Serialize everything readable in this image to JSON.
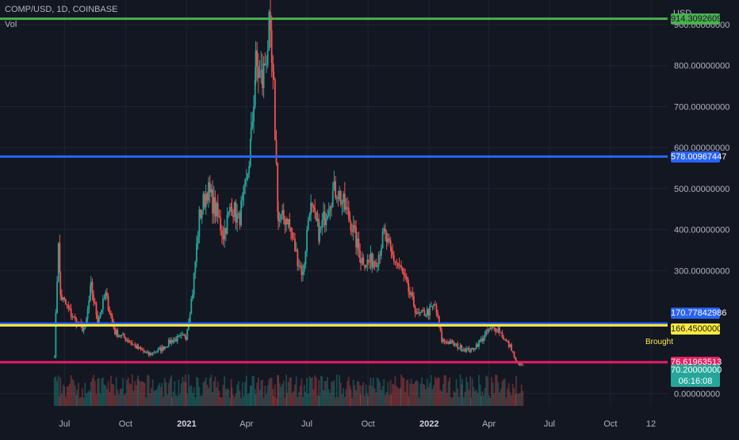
{
  "header": {
    "title": "COMP/USD, 1D, COINBASE",
    "indicator": "Vol"
  },
  "axis_unit": "USD",
  "colors": {
    "background": "#131722",
    "grid": "#1f2430",
    "up": "#26a69a",
    "down": "#ef5350",
    "axis_text": "#b2b5be"
  },
  "horizontal_lines": [
    {
      "price": 914.30926098,
      "label": "914.30926098",
      "color": "#4caf50",
      "text_color": "#131722"
    },
    {
      "price": 578.00967447,
      "label": "578.00967447",
      "color": "#2962ff",
      "text_color": "#ffffff"
    },
    {
      "price": 170.77842986,
      "label": "170.77842986",
      "color": "#2962ff",
      "text_color": "#ffffff"
    },
    {
      "price": 166.45,
      "label": "166.45000000",
      "color": "#ffeb3b",
      "text_color": "#131722",
      "tag": "Brought"
    },
    {
      "price": 76.61963513,
      "label": "76.61963513",
      "color": "#e91e63",
      "text_color": "#ffffff"
    }
  ],
  "last_price": {
    "label": "70.20000000",
    "countdown": "06:16:08",
    "color": "#26a69a"
  },
  "chart_data": {
    "type": "candlestick",
    "y_axis": {
      "ticks": [
        0,
        300,
        400,
        500,
        600,
        700,
        800,
        900
      ],
      "tick_labels": [
        "0.00000000",
        "300.00000000",
        "400.00000000",
        "500.00000000",
        "600.00000000",
        "700.00000000",
        "800.00000000",
        "900.00000000"
      ],
      "range": [
        -30,
        960
      ]
    },
    "x_axis": {
      "tick_labels": [
        "Jul",
        "Oct",
        "2021",
        "Apr",
        "Jul",
        "Oct",
        "2022",
        "Apr",
        "Jul",
        "Oct",
        "12"
      ],
      "tick_dates": [
        "2020-07-01",
        "2020-10-01",
        "2021-01-01",
        "2021-04-01",
        "2021-07-01",
        "2021-10-01",
        "2022-01-01",
        "2022-04-01",
        "2022-07-01",
        "2022-10-01",
        "2022-12-01"
      ],
      "bold_labels": [
        "2021",
        "2022"
      ],
      "range": [
        "2020-03-26",
        "2022-12-26"
      ]
    },
    "grid": true,
    "series": [
      {
        "name": "COMP/USD",
        "price_path": [
          [
            "2020-06-16",
            95
          ],
          [
            "2020-06-20",
            280
          ],
          [
            "2020-06-22",
            380
          ],
          [
            "2020-06-25",
            240
          ],
          [
            "2020-07-05",
            210
          ],
          [
            "2020-07-20",
            170
          ],
          [
            "2020-08-01",
            155
          ],
          [
            "2020-08-10",
            260
          ],
          [
            "2020-08-20",
            180
          ],
          [
            "2020-09-01",
            240
          ],
          [
            "2020-09-15",
            150
          ],
          [
            "2020-10-01",
            135
          ],
          [
            "2020-10-20",
            110
          ],
          [
            "2020-11-05",
            95
          ],
          [
            "2020-11-25",
            110
          ],
          [
            "2020-12-10",
            130
          ],
          [
            "2020-12-31",
            140
          ],
          [
            "2021-01-10",
            250
          ],
          [
            "2021-01-20",
            430
          ],
          [
            "2021-02-01",
            500
          ],
          [
            "2021-02-15",
            440
          ],
          [
            "2021-02-25",
            390
          ],
          [
            "2021-03-10",
            460
          ],
          [
            "2021-03-20",
            420
          ],
          [
            "2021-04-01",
            510
          ],
          [
            "2021-04-08",
            620
          ],
          [
            "2021-04-15",
            800
          ],
          [
            "2021-04-25",
            760
          ],
          [
            "2021-05-05",
            880
          ],
          [
            "2021-05-12",
            730
          ],
          [
            "2021-05-19",
            420
          ],
          [
            "2021-06-01",
            430
          ],
          [
            "2021-06-15",
            340
          ],
          [
            "2021-06-25",
            290
          ],
          [
            "2021-07-05",
            460
          ],
          [
            "2021-07-20",
            390
          ],
          [
            "2021-08-05",
            480
          ],
          [
            "2021-08-15",
            500
          ],
          [
            "2021-08-25",
            460
          ],
          [
            "2021-09-05",
            420
          ],
          [
            "2021-09-20",
            330
          ],
          [
            "2021-10-01",
            320
          ],
          [
            "2021-10-15",
            330
          ],
          [
            "2021-10-25",
            390
          ],
          [
            "2021-11-05",
            340
          ],
          [
            "2021-11-20",
            300
          ],
          [
            "2021-12-01",
            250
          ],
          [
            "2021-12-15",
            190
          ],
          [
            "2021-12-31",
            200
          ],
          [
            "2022-01-10",
            215
          ],
          [
            "2022-01-20",
            130
          ],
          [
            "2022-02-01",
            125
          ],
          [
            "2022-02-20",
            110
          ],
          [
            "2022-03-05",
            105
          ],
          [
            "2022-03-20",
            130
          ],
          [
            "2022-04-01",
            155
          ],
          [
            "2022-04-15",
            160
          ],
          [
            "2022-04-25",
            130
          ],
          [
            "2022-05-05",
            110
          ],
          [
            "2022-05-12",
            75
          ],
          [
            "2022-05-22",
            70.2
          ]
        ]
      },
      {
        "name": "Vol",
        "style": "histogram"
      }
    ]
  }
}
